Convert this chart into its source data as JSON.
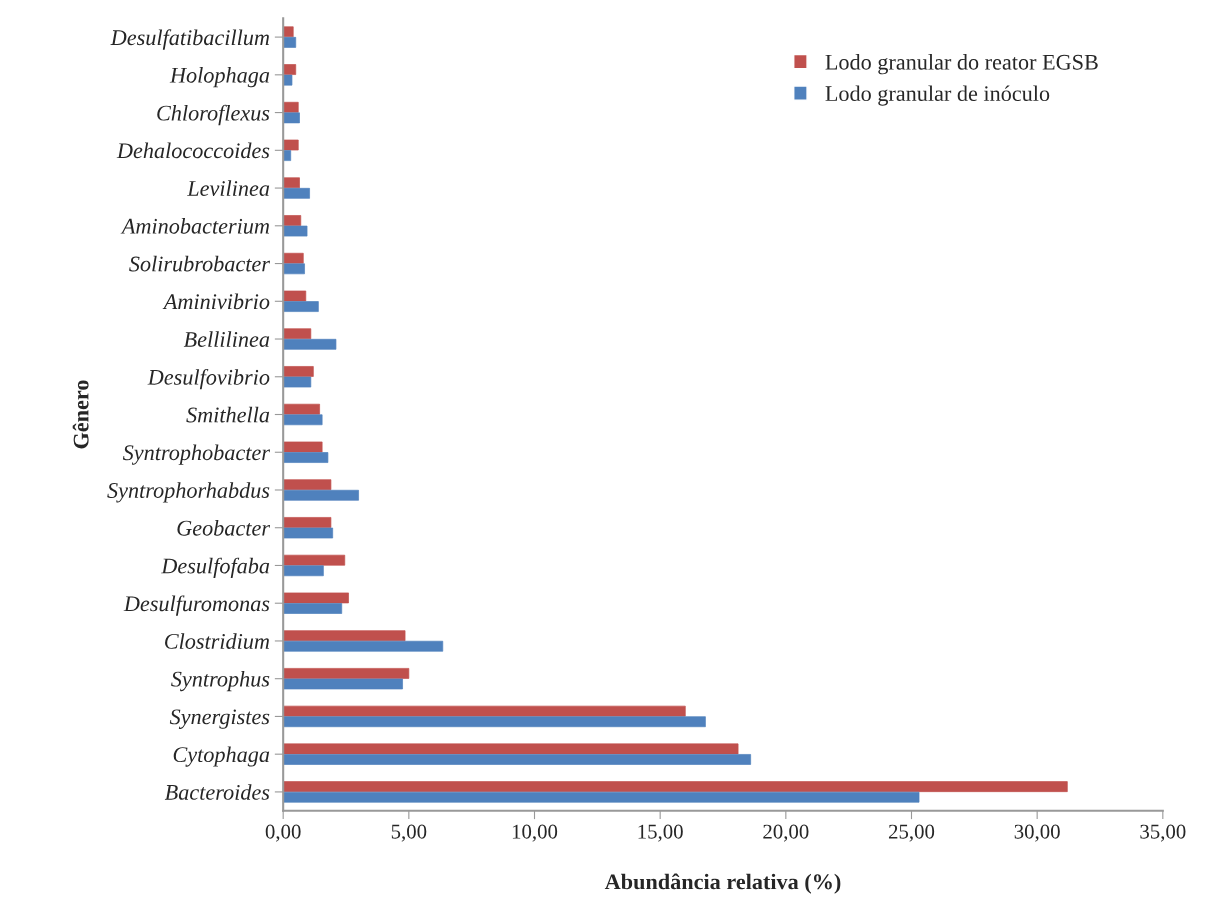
{
  "chart_data": {
    "type": "bar",
    "orientation": "horizontal",
    "xlabel": "Abundância relativa (%)",
    "ylabel": "Gênero",
    "categories": [
      "Desulfatibacillum",
      "Holophaga",
      "Chloroflexus",
      "Dehalococcoides",
      "Levilinea",
      "Aminobacterium",
      "Solirubrobacter",
      "Aminivibrio",
      "Bellilinea",
      "Desulfovibrio",
      "Smithella",
      "Syntrophobacter",
      "Syntrophorhabdus",
      "Geobacter",
      "Desulfofaba",
      "Desulfuromonas",
      "Clostridium",
      "Syntrophus",
      "Synergistes",
      "Cytophaga",
      "Bacteroides"
    ],
    "series": [
      {
        "name": "Lodo granular do reator EGSB",
        "color": "#c0504d",
        "values": [
          0.4,
          0.5,
          0.6,
          0.6,
          0.65,
          0.7,
          0.8,
          0.9,
          1.1,
          1.2,
          1.45,
          1.55,
          1.9,
          1.9,
          2.45,
          2.6,
          4.85,
          5.0,
          16.0,
          18.1,
          31.2
        ]
      },
      {
        "name": "Lodo granular de inóculo",
        "color": "#4f81bd",
        "values": [
          0.5,
          0.35,
          0.65,
          0.3,
          1.05,
          0.95,
          0.85,
          1.4,
          2.1,
          1.1,
          1.55,
          1.78,
          3.0,
          1.97,
          1.6,
          2.33,
          6.35,
          4.75,
          16.8,
          18.6,
          25.3
        ]
      }
    ],
    "xlim": [
      0,
      35
    ],
    "xticks": [
      {
        "value": 0,
        "label": "0,00"
      },
      {
        "value": 5,
        "label": "5,00"
      },
      {
        "value": 10,
        "label": "10,00"
      },
      {
        "value": 15,
        "label": "15,00"
      },
      {
        "value": 20,
        "label": "20,00"
      },
      {
        "value": 25,
        "label": "25,00"
      },
      {
        "value": 30,
        "label": "30,00"
      },
      {
        "value": 35,
        "label": "35,00"
      }
    ],
    "grid": false,
    "legend": "top right"
  }
}
